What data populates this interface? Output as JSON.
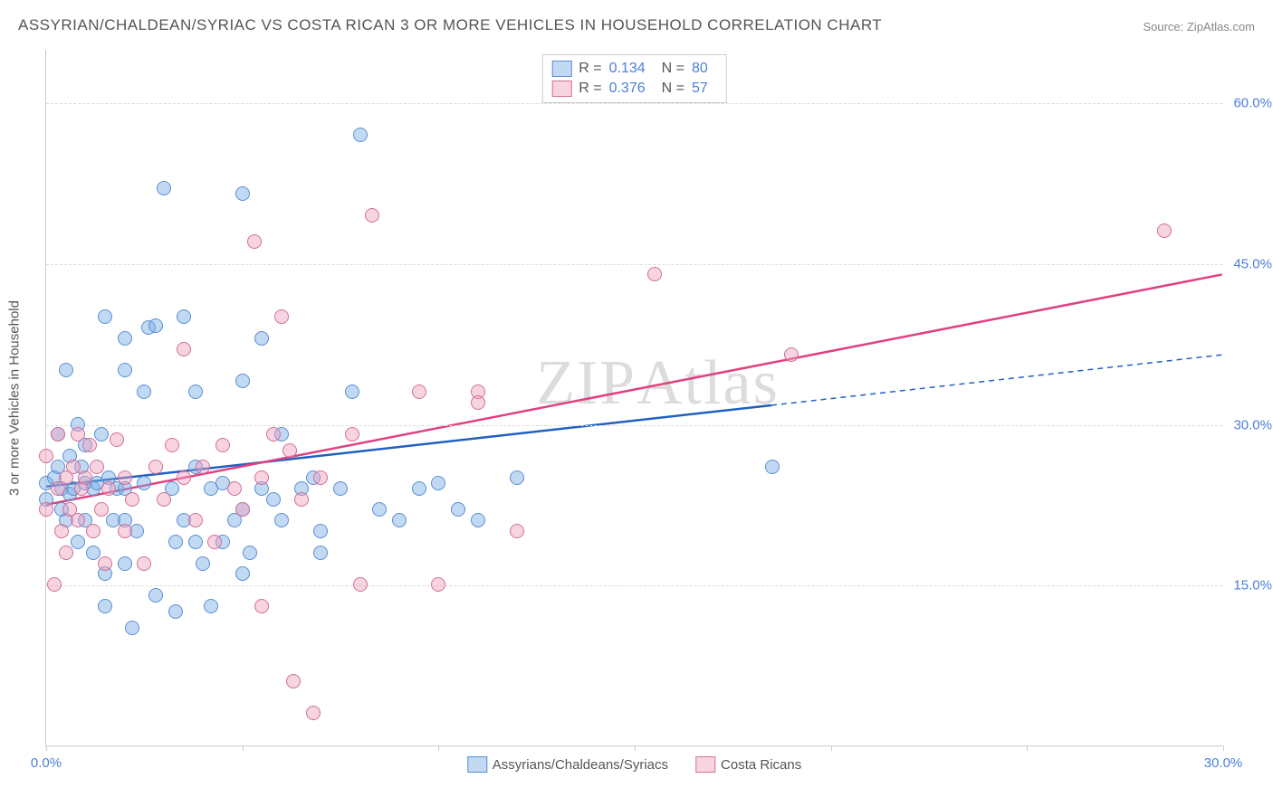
{
  "title": "ASSYRIAN/CHALDEAN/SYRIAC VS COSTA RICAN 3 OR MORE VEHICLES IN HOUSEHOLD CORRELATION CHART",
  "source": "Source: ZipAtlas.com",
  "watermark_zip": "ZIP",
  "watermark_atlas": "Atlas",
  "chart": {
    "type": "scatter",
    "ylabel": "3 or more Vehicles in Household",
    "xlim": [
      0,
      30
    ],
    "ylim": [
      0,
      65
    ],
    "y_gridlines": [
      15,
      30,
      45,
      60
    ],
    "y_labels": [
      "15.0%",
      "30.0%",
      "45.0%",
      "60.0%"
    ],
    "x_ticks": [
      0,
      5,
      10,
      15,
      20,
      25,
      30
    ],
    "x_labels_shown": {
      "0": "0.0%",
      "30": "30.0%"
    },
    "background_color": "#ffffff",
    "grid_color": "#dddddd",
    "axis_color": "#cccccc",
    "tick_label_color": "#4a7fd8",
    "label_fontsize": 15,
    "title_fontsize": 17,
    "marker_size": 16,
    "series": [
      {
        "name": "Assyrians/Chaldeans/Syriacs",
        "fill_color": "rgba(120,170,230,0.45)",
        "stroke_color": "#5a8fd0",
        "trend_color": "#2060c0",
        "trend_width": 2.5,
        "trend_solid_xmax": 18.5,
        "trend_y_at_x0": 24.2,
        "trend_y_at_x30": 36.5,
        "R": "0.134",
        "N": "80",
        "points": [
          [
            0,
            23
          ],
          [
            0,
            24.5
          ],
          [
            0.2,
            25
          ],
          [
            0.3,
            29
          ],
          [
            0.3,
            26
          ],
          [
            0.4,
            22
          ],
          [
            0.4,
            24
          ],
          [
            0.5,
            35
          ],
          [
            0.5,
            21
          ],
          [
            0.6,
            27
          ],
          [
            0.6,
            23.5
          ],
          [
            0.7,
            24
          ],
          [
            0.8,
            30
          ],
          [
            0.8,
            19
          ],
          [
            0.9,
            26
          ],
          [
            1,
            24.5
          ],
          [
            1,
            28
          ],
          [
            1,
            21
          ],
          [
            1.2,
            24
          ],
          [
            1.2,
            18
          ],
          [
            1.3,
            24.5
          ],
          [
            1.4,
            29
          ],
          [
            1.5,
            40
          ],
          [
            1.5,
            16
          ],
          [
            1.5,
            13
          ],
          [
            1.6,
            25
          ],
          [
            1.7,
            21
          ],
          [
            1.8,
            24
          ],
          [
            2,
            38
          ],
          [
            2,
            35
          ],
          [
            2,
            24
          ],
          [
            2,
            21
          ],
          [
            2,
            17
          ],
          [
            2.2,
            11
          ],
          [
            2.3,
            20
          ],
          [
            2.5,
            33
          ],
          [
            2.5,
            24.5
          ],
          [
            2.6,
            39
          ],
          [
            2.8,
            14
          ],
          [
            2.8,
            39.2
          ],
          [
            3,
            52
          ],
          [
            3.2,
            24
          ],
          [
            3.3,
            12.5
          ],
          [
            3.3,
            19
          ],
          [
            3.5,
            40
          ],
          [
            3.5,
            21
          ],
          [
            3.8,
            33
          ],
          [
            3.8,
            26
          ],
          [
            3.8,
            19
          ],
          [
            4,
            17
          ],
          [
            4.2,
            24
          ],
          [
            4.2,
            13
          ],
          [
            4.5,
            24.5
          ],
          [
            4.5,
            19
          ],
          [
            4.8,
            21
          ],
          [
            5,
            51.5
          ],
          [
            5,
            34
          ],
          [
            5,
            22
          ],
          [
            5,
            16
          ],
          [
            5.2,
            18
          ],
          [
            5.5,
            38
          ],
          [
            5.5,
            24
          ],
          [
            5.8,
            23
          ],
          [
            6,
            21
          ],
          [
            6,
            29
          ],
          [
            6.5,
            24
          ],
          [
            6.8,
            25
          ],
          [
            7,
            18
          ],
          [
            7,
            20
          ],
          [
            7.5,
            24
          ],
          [
            7.8,
            33
          ],
          [
            8,
            57
          ],
          [
            8.5,
            22
          ],
          [
            9,
            21
          ],
          [
            9.5,
            24
          ],
          [
            10,
            24.5
          ],
          [
            10.5,
            22
          ],
          [
            11,
            21
          ],
          [
            12,
            25
          ],
          [
            18.5,
            26
          ]
        ]
      },
      {
        "name": "Costa Ricans",
        "fill_color": "rgba(240,160,190,0.45)",
        "stroke_color": "#d07095",
        "trend_color": "#e04080",
        "trend_width": 2.5,
        "trend_solid_xmax": 30,
        "trend_y_at_x0": 22.5,
        "trend_y_at_x30": 44,
        "R": "0.376",
        "N": "57",
        "points": [
          [
            0,
            22
          ],
          [
            0,
            27
          ],
          [
            0.2,
            15
          ],
          [
            0.3,
            24
          ],
          [
            0.3,
            29
          ],
          [
            0.4,
            20
          ],
          [
            0.5,
            25
          ],
          [
            0.5,
            18
          ],
          [
            0.6,
            22
          ],
          [
            0.7,
            26
          ],
          [
            0.8,
            21
          ],
          [
            0.8,
            29
          ],
          [
            0.9,
            24
          ],
          [
            1,
            25
          ],
          [
            1.1,
            28
          ],
          [
            1.2,
            20
          ],
          [
            1.3,
            26
          ],
          [
            1.4,
            22
          ],
          [
            1.5,
            17
          ],
          [
            1.6,
            24
          ],
          [
            1.8,
            28.5
          ],
          [
            2,
            25
          ],
          [
            2,
            20
          ],
          [
            2.2,
            23
          ],
          [
            2.5,
            17
          ],
          [
            2.8,
            26
          ],
          [
            3,
            23
          ],
          [
            3.2,
            28
          ],
          [
            3.5,
            37
          ],
          [
            3.5,
            25
          ],
          [
            3.8,
            21
          ],
          [
            4,
            26
          ],
          [
            4.3,
            19
          ],
          [
            4.5,
            28
          ],
          [
            4.8,
            24
          ],
          [
            5,
            22
          ],
          [
            5.3,
            47
          ],
          [
            5.5,
            25
          ],
          [
            5.5,
            13
          ],
          [
            5.8,
            29
          ],
          [
            6,
            40
          ],
          [
            6.2,
            27.5
          ],
          [
            6.3,
            6
          ],
          [
            6.5,
            23
          ],
          [
            6.8,
            3
          ],
          [
            7,
            25
          ],
          [
            7.8,
            29
          ],
          [
            8,
            15
          ],
          [
            8.3,
            49.5
          ],
          [
            9.5,
            33
          ],
          [
            10,
            15
          ],
          [
            11,
            33
          ],
          [
            11,
            32
          ],
          [
            12,
            20
          ],
          [
            15.5,
            44
          ],
          [
            19,
            36.5
          ],
          [
            28.5,
            48
          ]
        ]
      }
    ],
    "stats_box": {
      "border_color": "#cccccc",
      "rows": [
        {
          "swatch_fill": "rgba(120,170,230,0.45)",
          "swatch_border": "#5a8fd0",
          "R_label": "R =",
          "R": "0.134",
          "N_label": "N =",
          "N": "80"
        },
        {
          "swatch_fill": "rgba(240,160,190,0.45)",
          "swatch_border": "#d07095",
          "R_label": "R =",
          "R": "0.376",
          "N_label": "N =",
          "N": "57"
        }
      ]
    },
    "legend": [
      {
        "swatch_fill": "rgba(120,170,230,0.45)",
        "swatch_border": "#5a8fd0",
        "label": "Assyrians/Chaldeans/Syriacs"
      },
      {
        "swatch_fill": "rgba(240,160,190,0.45)",
        "swatch_border": "#d07095",
        "label": "Costa Ricans"
      }
    ]
  }
}
